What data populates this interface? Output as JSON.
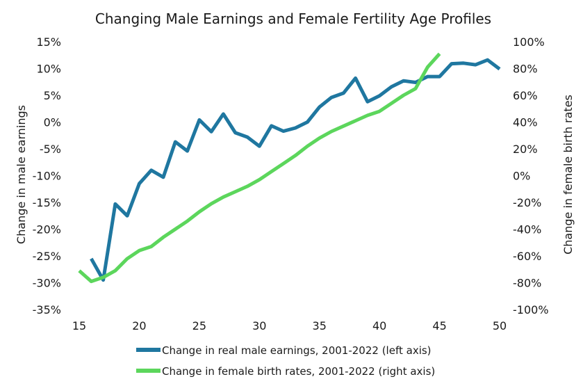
{
  "chart_data": {
    "type": "line",
    "title": "Changing Male Earnings and Female Fertility Age Profiles",
    "xlabel": "",
    "ylabel_left": "Change in male earnings",
    "ylabel_right": "Change in female birth rates",
    "xlim": [
      15,
      50
    ],
    "x_ticks": [
      15,
      20,
      25,
      30,
      35,
      40,
      45,
      50
    ],
    "x_tick_labels": [
      "15",
      "20",
      "25",
      "30",
      "35",
      "40",
      "45",
      "50"
    ],
    "ylim_left": [
      -35,
      15
    ],
    "y_ticks_left": [
      -35,
      -30,
      -25,
      -20,
      -15,
      -10,
      -5,
      0,
      5,
      10,
      15
    ],
    "y_tick_labels_left": [
      "-35%",
      "-30%",
      "-25%",
      "-20%",
      "-15%",
      "-10%",
      "-5%",
      "0%",
      "5%",
      "10%",
      "15%"
    ],
    "ylim_right": [
      -100,
      100
    ],
    "y_ticks_right": [
      -100,
      -80,
      -60,
      -40,
      -20,
      0,
      20,
      40,
      60,
      80,
      100
    ],
    "y_tick_labels_right": [
      "-100%",
      "-80%",
      "-60%",
      "-40%",
      "-20%",
      "0%",
      "20%",
      "40%",
      "60%",
      "80%",
      "100%"
    ],
    "grid": false,
    "legend_position": "bottom",
    "series": [
      {
        "name": "Change in real male earnings, 2001-2022 (left axis)",
        "axis": "left",
        "color": "#1f77a0",
        "x": [
          16,
          17,
          18,
          19,
          20,
          21,
          22,
          23,
          24,
          25,
          26,
          27,
          28,
          29,
          30,
          31,
          32,
          33,
          34,
          35,
          36,
          37,
          38,
          39,
          40,
          41,
          42,
          43,
          44,
          45,
          46,
          47,
          48,
          49,
          50
        ],
        "values": [
          -25.5,
          -29.5,
          -15.3,
          -17.5,
          -11.5,
          -9.0,
          -10.3,
          -3.7,
          -5.4,
          0.4,
          -1.8,
          1.5,
          -2.0,
          -2.8,
          -4.5,
          -0.7,
          -1.7,
          -1.1,
          0.0,
          2.8,
          4.6,
          5.4,
          8.2,
          3.8,
          4.9,
          6.6,
          7.7,
          7.4,
          8.5,
          8.5,
          10.9,
          11.0,
          10.7,
          11.6,
          9.9
        ]
      },
      {
        "name": "Change in female birth rates, 2001-2022 (right axis)",
        "axis": "right",
        "color": "#5cd65c",
        "x": [
          15,
          16,
          17,
          18,
          19,
          20,
          21,
          22,
          23,
          24,
          25,
          26,
          27,
          28,
          29,
          30,
          31,
          32,
          33,
          34,
          35,
          36,
          37,
          38,
          39,
          40,
          41,
          42,
          43,
          44,
          45
        ],
        "values": [
          -71,
          -79,
          -76,
          -71,
          -62,
          -56,
          -53,
          -46,
          -40,
          -34,
          -27,
          -21,
          -16,
          -12,
          -8,
          -3,
          3,
          9,
          15,
          22,
          28,
          33,
          37,
          41,
          45,
          48,
          54,
          60,
          65,
          81,
          91
        ]
      }
    ]
  }
}
